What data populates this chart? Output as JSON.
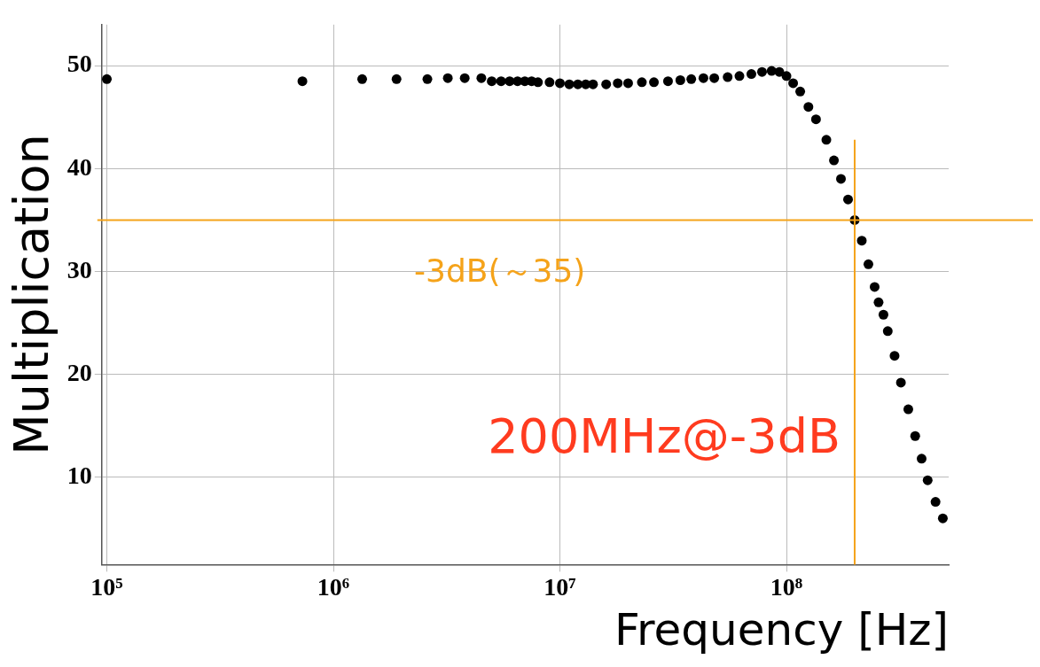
{
  "chart_data": {
    "type": "scatter",
    "xlabel": "Frequency [Hz]",
    "ylabel": "Multiplication",
    "log": "x",
    "xlim": [
      95000,
      520000000
    ],
    "ylim": [
      1.5,
      54
    ],
    "xticks": [
      {
        "value": 100000,
        "label": "10⁵"
      },
      {
        "value": 1000000,
        "label": "10⁶"
      },
      {
        "value": 10000000,
        "label": "10⁷"
      },
      {
        "value": 100000000,
        "label": "10⁸"
      }
    ],
    "yticks": [
      10,
      20,
      30,
      40,
      50
    ],
    "grid": true,
    "marker": "circle",
    "legend": false,
    "ref_lines": [
      {
        "axis": "y",
        "value": 35,
        "label": "-3dB(～35)",
        "color": "#f5a31a"
      },
      {
        "axis": "x",
        "value": 200000000,
        "label": "200MHz@-3dB",
        "color": "#f5a31a"
      }
    ],
    "series": [
      {
        "color": "#000000",
        "x": [
          100000,
          730000,
          1340000,
          1900000,
          2600000,
          3200000,
          3800000,
          4500000,
          5000000,
          5500000,
          6000000,
          6500000,
          7000000,
          7500000,
          8000000,
          9000000,
          10000000,
          11000000,
          12000000,
          13000000,
          14000000,
          16000000,
          18000000,
          20000000,
          23000000,
          26000000,
          30000000,
          34000000,
          38000000,
          43000000,
          48000000,
          55000000,
          62000000,
          70000000,
          78000000,
          86000000,
          93000000,
          100000000,
          107000000,
          115000000,
          125000000,
          135000000,
          150000000,
          162000000,
          174000000,
          187000000,
          200000000,
          215000000,
          230000000,
          245000000,
          255000000,
          268000000,
          280000000,
          300000000,
          320000000,
          345000000,
          370000000,
          395000000,
          420000000,
          455000000,
          490000000
        ],
        "values": [
          48.7,
          48.5,
          48.7,
          48.7,
          48.7,
          48.8,
          48.8,
          48.8,
          48.5,
          48.5,
          48.5,
          48.5,
          48.5,
          48.5,
          48.4,
          48.4,
          48.3,
          48.2,
          48.2,
          48.2,
          48.2,
          48.2,
          48.3,
          48.3,
          48.4,
          48.4,
          48.5,
          48.6,
          48.7,
          48.8,
          48.8,
          48.9,
          49.0,
          49.2,
          49.4,
          49.5,
          49.4,
          49.0,
          48.3,
          47.5,
          46.0,
          44.8,
          42.8,
          40.8,
          39.0,
          37.0,
          35.0,
          33.0,
          30.7,
          28.5,
          27.0,
          25.8,
          24.2,
          21.8,
          19.2,
          16.6,
          14.0,
          11.8,
          9.7,
          7.6,
          6.0
        ]
      }
    ]
  }
}
